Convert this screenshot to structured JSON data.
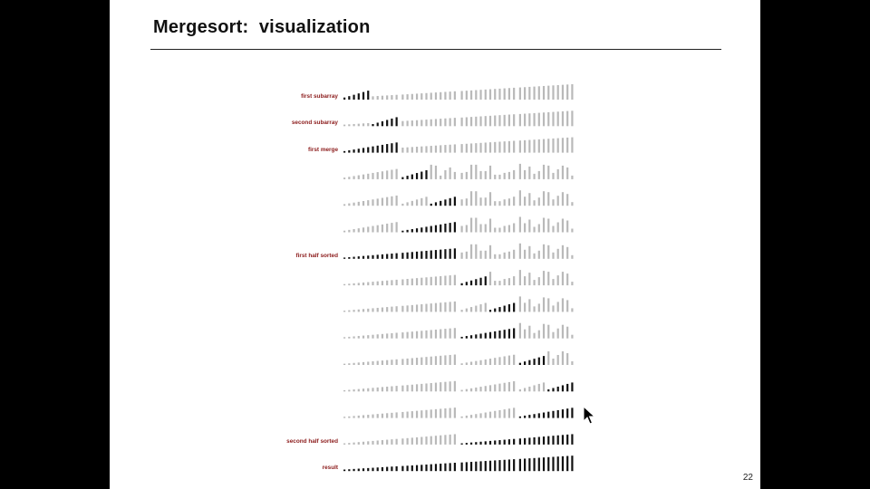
{
  "slide": {
    "title": "Mergesort:  visualization",
    "page_number": "22"
  },
  "visualization": {
    "array_size": 48,
    "rows": [
      {
        "label": "first subarray",
        "lo": 0,
        "hi": 5,
        "sorted": [
          [
            0,
            47
          ]
        ],
        "active": [
          0,
          5
        ]
      },
      {
        "label": "second subarray",
        "lo": 6,
        "hi": 11,
        "sorted": [
          [
            0,
            47
          ]
        ],
        "active": [
          6,
          11
        ]
      },
      {
        "label": "first merge",
        "lo": 0,
        "hi": 11,
        "sorted": [
          [
            0,
            47
          ]
        ],
        "active": [
          0,
          11
        ]
      },
      {
        "label": "",
        "lo": 12,
        "hi": 17,
        "sorted": [
          [
            0,
            11
          ]
        ],
        "active": [
          12,
          17
        ]
      },
      {
        "label": "",
        "lo": 18,
        "hi": 23,
        "sorted": [
          [
            0,
            11
          ],
          [
            12,
            17
          ]
        ],
        "active": [
          18,
          23
        ]
      },
      {
        "label": "",
        "lo": 12,
        "hi": 23,
        "sorted": [
          [
            0,
            11
          ]
        ],
        "active": [
          12,
          23
        ]
      },
      {
        "label": "first half sorted",
        "lo": 0,
        "hi": 23,
        "sorted": [],
        "active": [
          0,
          23
        ]
      },
      {
        "label": "",
        "lo": 24,
        "hi": 29,
        "sorted": [
          [
            0,
            23
          ]
        ],
        "active": [
          24,
          29
        ]
      },
      {
        "label": "",
        "lo": 30,
        "hi": 35,
        "sorted": [
          [
            0,
            23
          ],
          [
            24,
            29
          ]
        ],
        "active": [
          30,
          35
        ]
      },
      {
        "label": "",
        "lo": 24,
        "hi": 35,
        "sorted": [
          [
            0,
            23
          ]
        ],
        "active": [
          24,
          35
        ]
      },
      {
        "label": "",
        "lo": 36,
        "hi": 41,
        "sorted": [
          [
            0,
            23
          ],
          [
            24,
            35
          ]
        ],
        "active": [
          36,
          41
        ]
      },
      {
        "label": "",
        "lo": 42,
        "hi": 47,
        "sorted": [
          [
            0,
            23
          ],
          [
            24,
            35
          ],
          [
            36,
            41
          ]
        ],
        "active": [
          42,
          47
        ]
      },
      {
        "label": "",
        "lo": 36,
        "hi": 47,
        "sorted": [
          [
            0,
            23
          ],
          [
            24,
            35
          ]
        ],
        "active": [
          36,
          47
        ]
      },
      {
        "label": "second half sorted",
        "lo": 24,
        "hi": 47,
        "sorted": [
          [
            0,
            23
          ]
        ],
        "active": [
          24,
          47
        ]
      },
      {
        "label": "result",
        "lo": 0,
        "hi": 47,
        "sorted": [],
        "active": [
          0,
          47
        ]
      }
    ],
    "colors": {
      "active": "#111111",
      "inactive": "#b9b9b9",
      "label": "#8b1a1a"
    }
  },
  "cursor": {
    "icon": "mouse-pointer-icon"
  }
}
